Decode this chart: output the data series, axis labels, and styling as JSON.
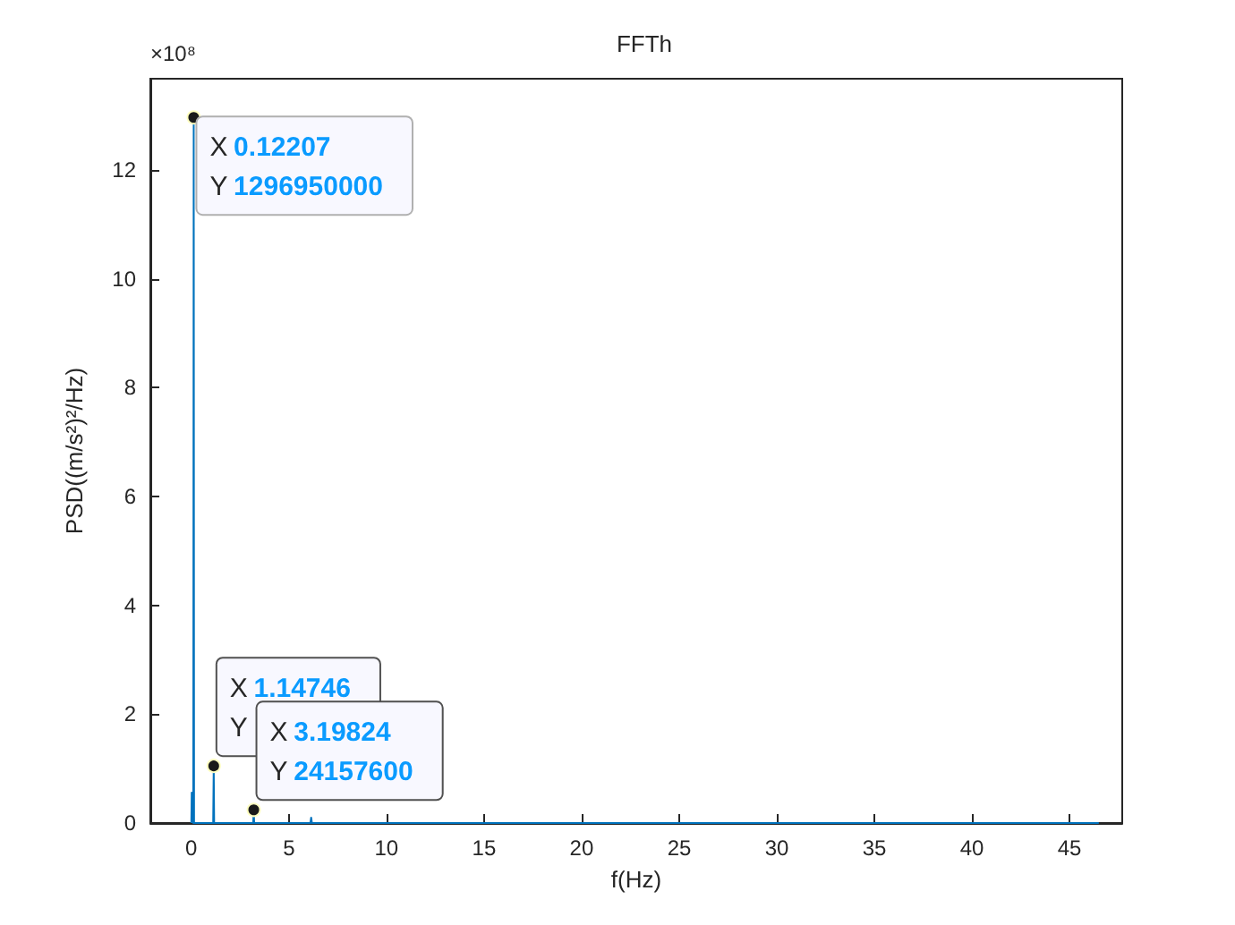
{
  "chart_data": {
    "type": "line",
    "title": "FFTh",
    "xlabel": "f(Hz)",
    "ylabel": "PSD((m/s²)²/Hz)",
    "series": [
      {
        "color": "#0072bd",
        "x": [
          0,
          0.02,
          0.06,
          0.1,
          0.12207,
          0.14,
          0.18,
          0.4,
          0.8,
          1.12,
          1.14746,
          1.17,
          1.5,
          3.17,
          3.19824,
          3.22,
          4,
          6.1,
          6.14,
          6.18,
          10,
          20,
          30,
          40,
          46.5
        ],
        "values": [
          0,
          0.56,
          0.02,
          0,
          12.97,
          0,
          0,
          0,
          0,
          0,
          1.05,
          0,
          0,
          0,
          0.24,
          0,
          0,
          0,
          0.1,
          0,
          0,
          0,
          0,
          0,
          0
        ]
      }
    ],
    "xlim": [
      -2.1,
      47.7
    ],
    "xticks": [
      0,
      5,
      10,
      15,
      20,
      25,
      30,
      35,
      40,
      45
    ],
    "ylim": [
      0,
      13.68
    ],
    "yticks": [
      0,
      2,
      4,
      6,
      8,
      10,
      12
    ],
    "grid": false,
    "annotations": [
      "×10⁸",
      {
        "text": "X 0.12207\nY 1296950000",
        "x": 0.12207,
        "y": 12.9695
      },
      {
        "text": "X 1.14746\nY",
        "x": 1.14746,
        "y": 1.05
      },
      {
        "text": "X 3.19824\nY 24157600",
        "x": 3.19824,
        "y": 0.241576
      }
    ]
  }
}
